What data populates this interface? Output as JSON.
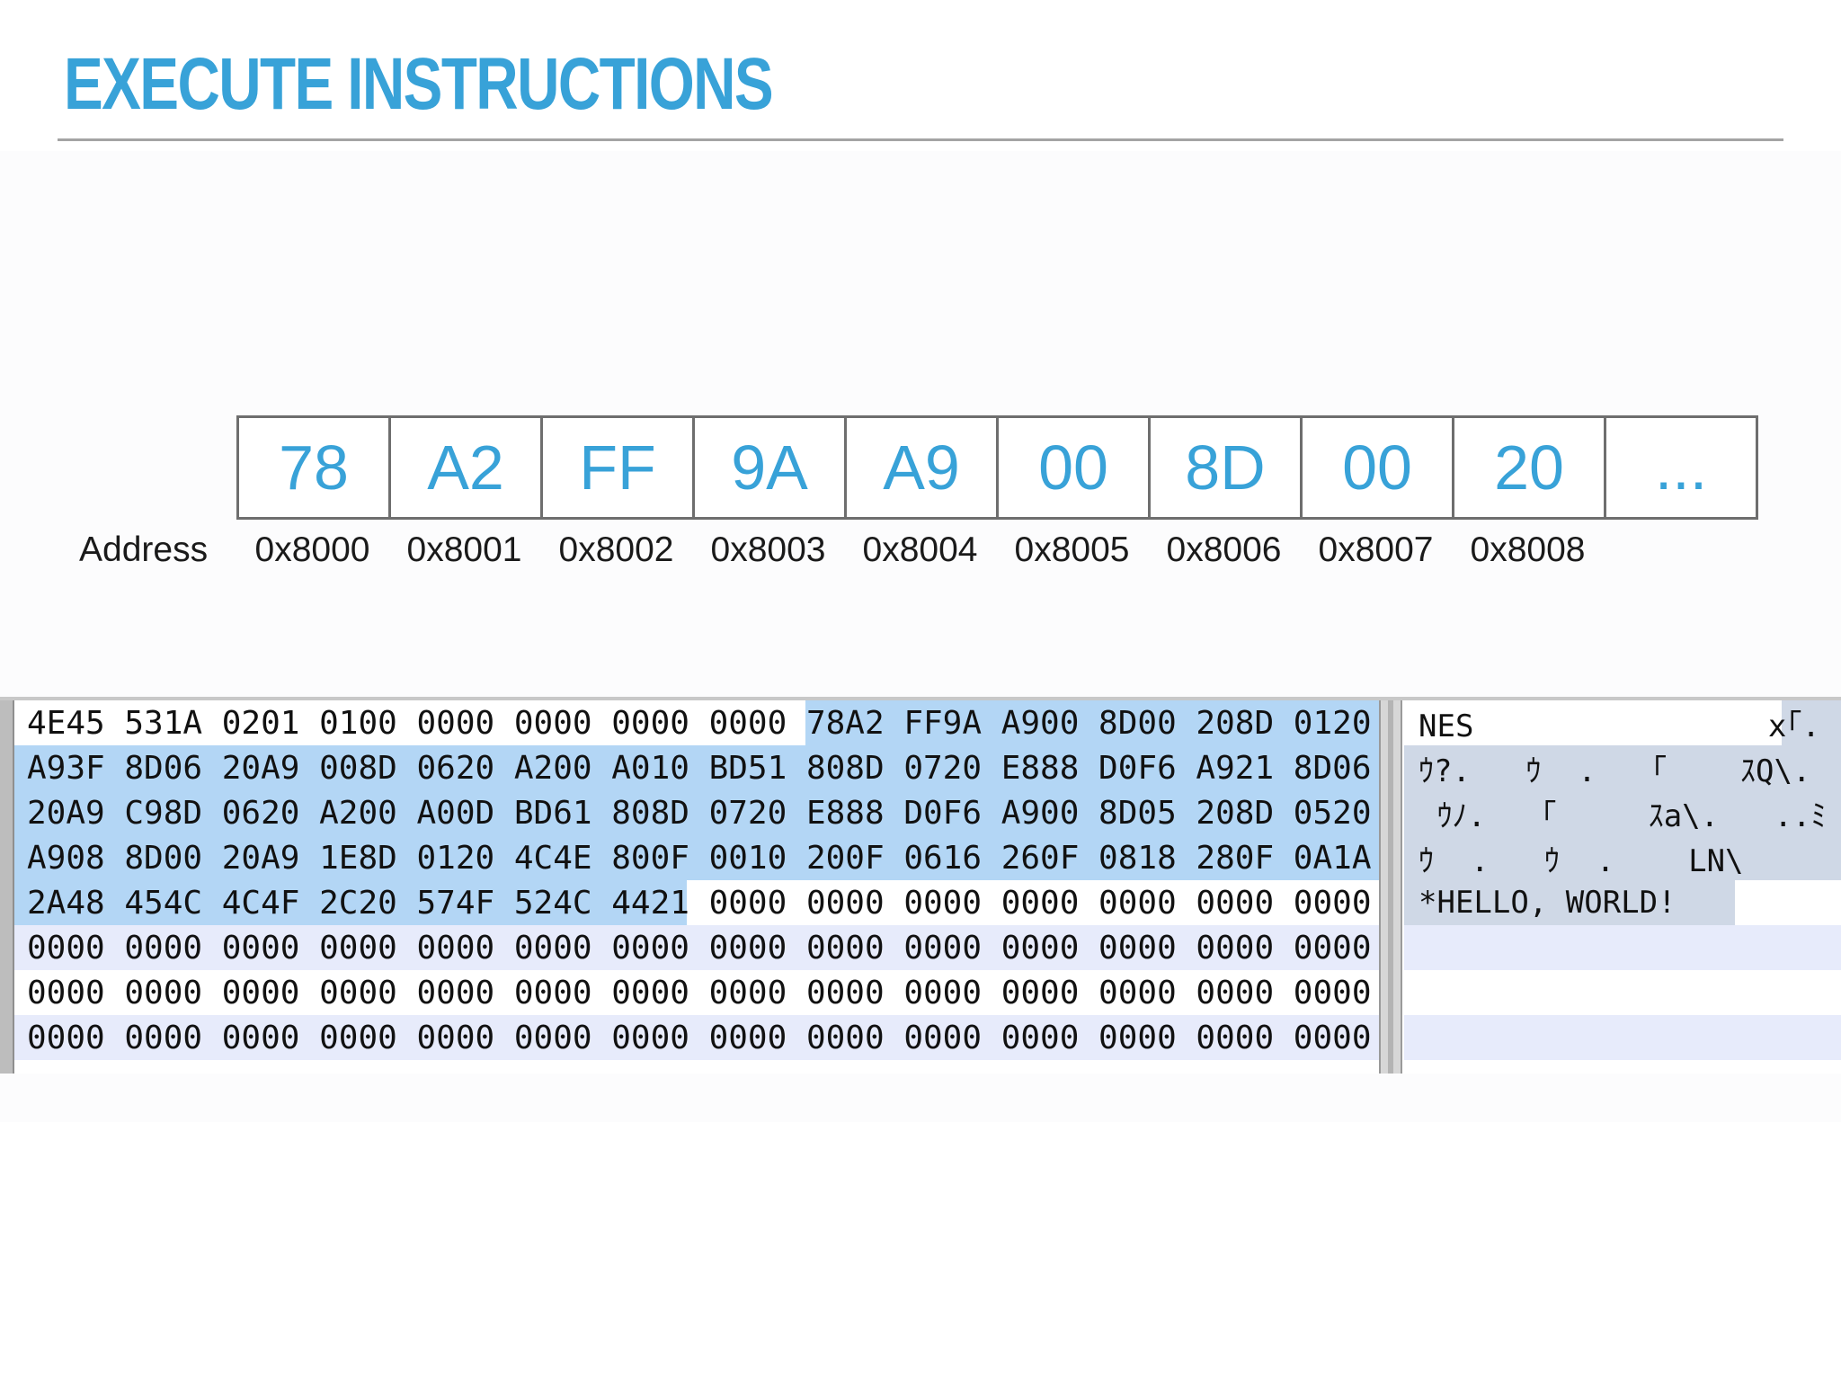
{
  "slide": {
    "title": "EXECUTE INSTRUCTIONS"
  },
  "memory": {
    "bytes": [
      "78",
      "A2",
      "FF",
      "9A",
      "A9",
      "00",
      "8D",
      "00",
      "20",
      "..."
    ],
    "address_label": "Address",
    "addresses": [
      "0x8000",
      "0x8001",
      "0x8002",
      "0x8003",
      "0x8004",
      "0x8005",
      "0x8006",
      "0x8007",
      "0x8008"
    ]
  },
  "hex_editor": {
    "hex_lines": [
      "4E45 531A 0201 0100 0000 0000 0000 0000 78A2 FF9A A900 8D00 208D 0120",
      "A93F 8D06 20A9 008D 0620 A200 A010 BD51 808D 0720 E888 D0F6 A921 8D06",
      "20A9 C98D 0620 A200 A00D BD61 808D 0720 E888 D0F6 A900 8D05 208D 0520",
      "A908 8D00 20A9 1E8D 0120 4C4E 800F 0010 200F 0616 260F 0818 280F 0A1A",
      "2A48 454C 4C4F 2C20 574F 524C 4421 0000 0000 0000 0000 0000 0000 0000",
      "0000 0000 0000 0000 0000 0000 0000 0000 0000 0000 0000 0000 0000 0000",
      "0000 0000 0000 0000 0000 0000 0000 0000 0000 0000 0000 0000 0000 0000",
      "0000 0000 0000 0000 0000 0000 0000 0000 0000 0000 0000 0000 0000 0000"
    ],
    "ascii_lines": [
      "NES                x｢.",
      "ｳ?.   ｳ  .   ｢    ｽQ\\.",
      " ｳﾉ.   ｢     ｽa\\.   ..ﾐ",
      "ｳ  .   ｳ  .    LN\\",
      "*HELLO, WORLD!",
      "",
      "",
      ""
    ]
  }
}
